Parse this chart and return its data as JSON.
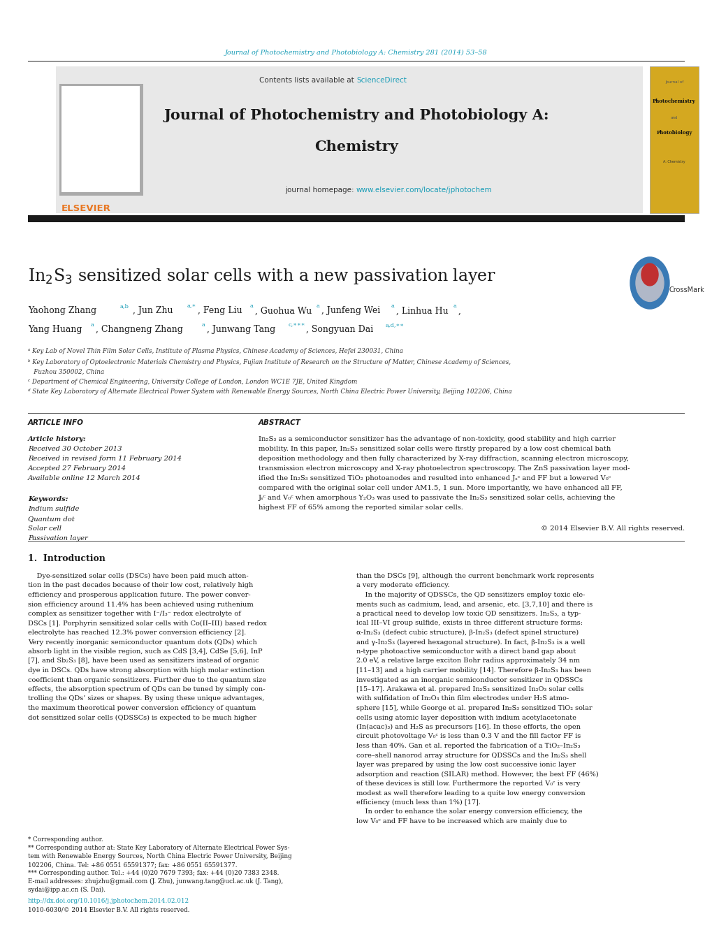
{
  "page_width": 10.2,
  "page_height": 13.51,
  "bg_color": "#ffffff",
  "top_journal_line": "Journal of Photochemistry and Photobiology A: Chemistry 281 (2014) 53–58",
  "top_line_color": "#1a9db7",
  "sciencedirect_color": "#1a9db7",
  "journal_title_line1": "Journal of Photochemistry and Photobiology A:",
  "journal_title_line2": "Chemistry",
  "homepage_url": "www.elsevier.com/locate/jphotochem",
  "homepage_url_color": "#1a9db7",
  "elsevier_color": "#e87722",
  "article_title": "In$_2$S$_3$ sensitized solar cells with a new passivation layer",
  "ref_color": "#1a9db7",
  "affil_a": "ᵃ Key Lab of Novel Thin Film Solar Cells, Institute of Plasma Physics, Chinese Academy of Sciences, Hefei 230031, China",
  "affil_b": "ᵇ Key Laboratory of Optoelectronic Materials Chemistry and Physics, Fujian Institute of Research on the Structure of Matter, Chinese Academy of Sciences,",
  "affil_b2": "   Fuzhou 350002, China",
  "affil_c": "ᶜ Department of Chemical Engineering, University College of London, London WC1E 7JE, United Kingdom",
  "affil_d": "ᵈ State Key Laboratory of Alternate Electrical Power System with Renewable Energy Sources, North China Electric Power University, Beijing 102206, China",
  "article_info_title": "ARTICLE INFO",
  "abstract_title": "ABSTRACT",
  "article_history_label": "Article history:",
  "received1": "Received 30 October 2013",
  "received2": "Received in revised form 11 February 2014",
  "accepted": "Accepted 27 February 2014",
  "available": "Available online 12 March 2014",
  "keywords_label": "Keywords:",
  "keyword1": "Indium sulfide",
  "keyword2": "Quantum dot",
  "keyword3": "Solar cell",
  "keyword4": "Passivation layer",
  "abstract_lines": [
    "In₂S₃ as a semiconductor sensitizer has the advantage of non-toxicity, good stability and high carrier",
    "mobility. In this paper, In₂S₃ sensitized solar cells were firstly prepared by a low cost chemical bath",
    "deposition methodology and then fully characterized by X-ray diffraction, scanning electron microscopy,",
    "transmission electron microscopy and X-ray photoelectron spectroscopy. The ZnS passivation layer mod-",
    "ified the In₂S₃ sensitized TiO₂ photoanodes and resulted into enhanced Jₛᶜ and FF but a lowered V₀ᶜ",
    "compared with the original solar cell under AM1.5, 1 sun. More importantly, we have enhanced all FF,",
    "Jₛᶜ and V₀ᶜ when amorphous Y₂O₃ was used to passivate the In₂S₃ sensitized solar cells, achieving the",
    "highest FF of 65% among the reported similar solar cells."
  ],
  "copyright_text": "© 2014 Elsevier B.V. All rights reserved.",
  "intro_title": "1.  Introduction",
  "intro_col1_lines": [
    "    Dye-sensitized solar cells (DSCs) have been paid much atten-",
    "tion in the past decades because of their low cost, relatively high",
    "efficiency and prosperous application future. The power conver-",
    "sion efficiency around 11.4% has been achieved using ruthenium",
    "complex as sensitizer together with I⁻/I₃⁻ redox electrolyte of",
    "DSCs [1]. Porphyrin sensitized solar cells with Co(II–III) based redox",
    "electrolyte has reached 12.3% power conversion efficiency [2].",
    "Very recently inorganic semiconductor quantum dots (QDs) which",
    "absorb light in the visible region, such as CdS [3,4], CdSe [5,6], InP",
    "[7], and Sb₂S₃ [8], have been used as sensitizers instead of organic",
    "dye in DSCs. QDs have strong absorption with high molar extinction",
    "coefficient than organic sensitizers. Further due to the quantum size",
    "effects, the absorption spectrum of QDs can be tuned by simply con-",
    "trolling the QDs’ sizes or shapes. By using these unique advantages,",
    "the maximum theoretical power conversion efficiency of quantum",
    "dot sensitized solar cells (QDSSCs) is expected to be much higher"
  ],
  "intro_col2_lines": [
    "than the DSCs [9], although the current benchmark work represents",
    "a very moderate efficiency.",
    "    In the majority of QDSSCs, the QD sensitizers employ toxic ele-",
    "ments such as cadmium, lead, and arsenic, etc. [3,7,10] and there is",
    "a practical need to develop low toxic QD sensitizers. In₂S₃, a typ-",
    "ical III–VI group sulfide, exists in three different structure forms:",
    "α-In₂S₃ (defect cubic structure), β-In₂S₃ (defect spinel structure)",
    "and γ-In₂S₃ (layered hexagonal structure). In fact, β-In₂S₃ is a well",
    "n-type photoactive semiconductor with a direct band gap about",
    "2.0 eV, a relative large exciton Bohr radius approximately 34 nm",
    "[11–13] and a high carrier mobility [14]. Therefore β-In₂S₃ has been",
    "investigated as an inorganic semiconductor sensitizer in QDSSCs",
    "[15–17]. Arakawa et al. prepared In₂S₃ sensitized In₂O₃ solar cells",
    "with sulfidation of In₂O₃ thin film electrodes under H₂S atmo-",
    "sphere [15], while George et al. prepared In₂S₃ sensitized TiO₂ solar",
    "cells using atomic layer deposition with indium acetylacetonate",
    "(In(acac)₃) and H₂S as precursors [16]. In these efforts, the open",
    "circuit photovoltage V₀ᶜ is less than 0.3 V and the fill factor FF is",
    "less than 40%. Gan et al. reported the fabrication of a TiO₂–In₂S₃",
    "core–shell nanorod array structure for QDSSCs and the In₂S₃ shell",
    "layer was prepared by using the low cost successive ionic layer",
    "adsorption and reaction (SILAR) method. However, the best FF (46%)",
    "of these devices is still low. Furthermore the reported V₀ᶜ is very",
    "modest as well therefore leading to a quite low energy conversion",
    "efficiency (much less than 1%) [17].",
    "    In order to enhance the solar energy conversion efficiency, the",
    "low V₀ᶜ and FF have to be increased which are mainly due to"
  ],
  "footer_line1": "* Corresponding author.",
  "footer_line2a": "** Corresponding author at: State Key Laboratory of Alternate Electrical Power Sys-",
  "footer_line2b": "tem with Renewable Energy Sources, North China Electric Power University, Beijing",
  "footer_line2c": "102206, China. Tel: +86 0551 65591377; fax: +86 0551 65591377.",
  "footer_line3": "*** Corresponding author. Tel.: +44 (0)20 7679 7393; fax: +44 (0)20 7383 2348.",
  "footer_email1": "E-mail addresses: zhujzhu@gmail.com (J. Zhu), junwang.tang@ucl.ac.uk (J. Tang),",
  "footer_email2": "sydai@ipp.ac.cn (S. Dai).",
  "doi_text": "http://dx.doi.org/10.1016/j.jphotochem.2014.02.012",
  "issn_text": "1010-6030/© 2014 Elsevier B.V. All rights reserved."
}
